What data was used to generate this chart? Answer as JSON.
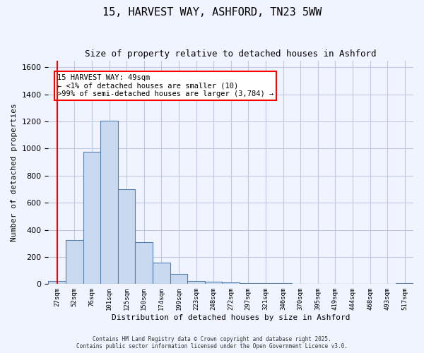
{
  "title": "15, HARVEST WAY, ASHFORD, TN23 5WW",
  "subtitle": "Size of property relative to detached houses in Ashford",
  "xlabel": "Distribution of detached houses by size in Ashford",
  "ylabel": "Number of detached properties",
  "categories": [
    "27sqm",
    "52sqm",
    "76sqm",
    "101sqm",
    "125sqm",
    "150sqm",
    "174sqm",
    "199sqm",
    "223sqm",
    "248sqm",
    "272sqm",
    "297sqm",
    "321sqm",
    "346sqm",
    "370sqm",
    "395sqm",
    "419sqm",
    "444sqm",
    "468sqm",
    "493sqm",
    "517sqm"
  ],
  "values": [
    20,
    325,
    975,
    1205,
    700,
    310,
    160,
    75,
    25,
    15,
    10,
    5,
    5,
    5,
    3,
    2,
    2,
    3,
    1,
    1,
    8
  ],
  "bar_color": "#c9d9f0",
  "bar_edge_color": "#5580b0",
  "grid_color": "#c0c8e0",
  "background_color": "#f0f4ff",
  "red_line_x": 0,
  "annotation_text": "15 HARVEST WAY: 49sqm\n← <1% of detached houses are smaller (10)\n>99% of semi-detached houses are larger (3,784) →",
  "annotation_box_color": "#ff0000",
  "ylim": [
    0,
    1650
  ],
  "yticks": [
    0,
    200,
    400,
    600,
    800,
    1000,
    1200,
    1400,
    1600
  ],
  "footer_line1": "Contains HM Land Registry data © Crown copyright and database right 2025.",
  "footer_line2": "Contains public sector information licensed under the Open Government Licence v3.0."
}
